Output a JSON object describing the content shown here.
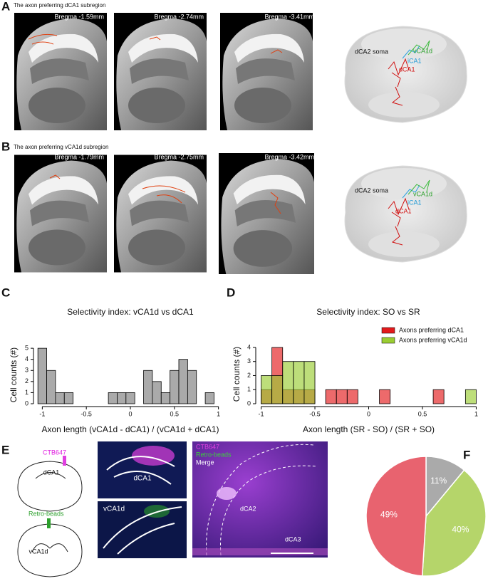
{
  "panels": {
    "a": {
      "label": "A",
      "caption": "The axon preferring dCA1 subregion",
      "sections": [
        "Bregma -1.59mm",
        "Bregma -2.74mm",
        "Bregma -3.41mm"
      ],
      "brain_labels": [
        "dCA2 soma",
        "vCA1d",
        "iCA1",
        "dCA1"
      ]
    },
    "b": {
      "label": "B",
      "caption": "The axon preferring vCA1d subregion",
      "sections": [
        "Bregma -1.79mm",
        "Bregma -2.75mm",
        "Bregma -3.42mm"
      ],
      "brain_labels": [
        "dCA2 soma",
        "vCA1d",
        "iCA1",
        "dCA1"
      ]
    },
    "c": {
      "label": "C"
    },
    "d": {
      "label": "D"
    },
    "e": {
      "label": "E",
      "tracer_1": "CTB647",
      "region_1": "dCA1",
      "tracer_2": "Retro-beads",
      "region_2": "vCA1d",
      "image_1_label": "dCA1",
      "image_2_label": "vCA1d",
      "merge_legend": [
        "CTB647",
        "Retro-beads",
        "Merge"
      ],
      "merge_labels": [
        "dCA2",
        "dCA3"
      ]
    },
    "f": {
      "label": "F"
    }
  },
  "chart_data": [
    {
      "type": "histogram",
      "title": "Selectivity index: vCA1d vs dCA1",
      "xlabel": "Axon length (vCA1d - dCA1) / (vCA1d + dCA1)",
      "ylabel": "Cell counts (#)",
      "bins": [
        -1.05,
        -0.95,
        -0.85,
        -0.75,
        -0.65,
        -0.55,
        -0.45,
        -0.35,
        -0.25,
        -0.15,
        -0.05,
        0.05,
        0.15,
        0.25,
        0.35,
        0.45,
        0.55,
        0.65,
        0.75,
        0.85,
        0.95,
        1.05
      ],
      "values": [
        5,
        3,
        1,
        1,
        0,
        0,
        0,
        0,
        1,
        1,
        1,
        0,
        3,
        2,
        1,
        3,
        4,
        3,
        0,
        1,
        0
      ],
      "color": "#aaaaaa",
      "xlim": [
        -1.1,
        1.1
      ],
      "xticks": [
        -1,
        -0.5,
        0,
        0.5,
        1
      ],
      "ylim": [
        0,
        5.2
      ],
      "yticks": [
        0,
        1,
        2,
        3,
        4,
        5
      ]
    },
    {
      "type": "histogram",
      "title": "Selectivity index: SO vs SR",
      "xlabel": "Axon length (SR - SO) / (SR + SO)",
      "ylabel": "Cell counts (#)",
      "bins": [
        -1.0,
        -0.9,
        -0.8,
        -0.7,
        -0.6,
        -0.5,
        -0.4,
        -0.3,
        -0.2,
        -0.1,
        0.0,
        0.1,
        0.2,
        0.3,
        0.4,
        0.5,
        0.6,
        0.7,
        0.8,
        0.9,
        1.0
      ],
      "series": [
        {
          "name": "Axons preferring dCA1",
          "color": "#e31a1c",
          "values": [
            1,
            4,
            1,
            1,
            1,
            0,
            1,
            1,
            1,
            0,
            0,
            1,
            0,
            0,
            0,
            0,
            1,
            0,
            0,
            0
          ]
        },
        {
          "name": "Axons preferring vCA1d",
          "color": "#9acd32",
          "values": [
            2,
            2,
            3,
            3,
            3,
            0,
            0,
            0,
            0,
            0,
            0,
            0,
            0,
            0,
            0,
            0,
            0,
            0,
            0,
            1
          ]
        }
      ],
      "opacity": 0.65,
      "legend": "upper right",
      "xlim": [
        -1.05,
        1.05
      ],
      "xticks": [
        -1,
        -0.5,
        0,
        0.5,
        1
      ],
      "ylim": [
        0,
        4.2
      ],
      "yticks": [
        0,
        1,
        2,
        3,
        4
      ]
    },
    {
      "type": "pie",
      "values": [
        11,
        40,
        49
      ],
      "value_labels": [
        "11%",
        "40%",
        "49%"
      ],
      "colors": [
        "#aaaaaa",
        "#b5d56a",
        "#e8636f"
      ]
    }
  ]
}
